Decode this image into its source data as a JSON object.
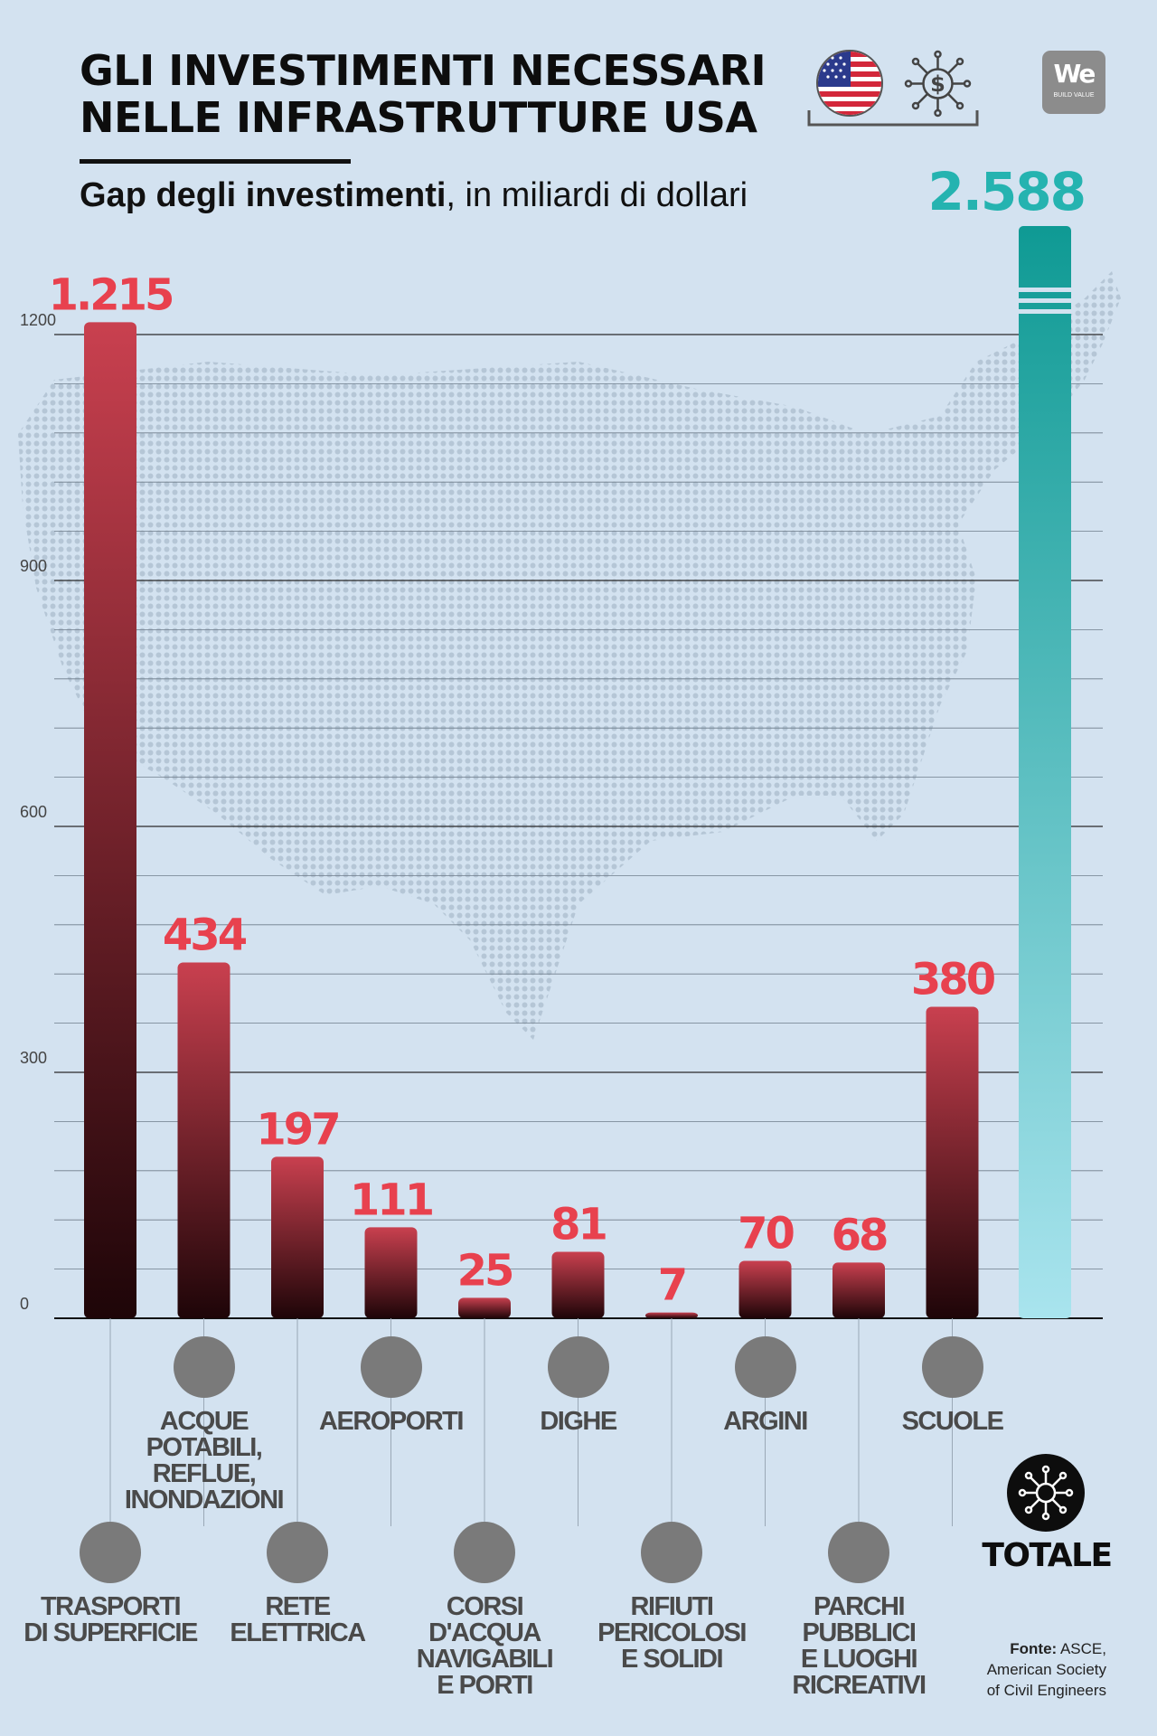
{
  "title": {
    "line1": "GLI INVESTIMENTI NECESSARI",
    "line2": "NELLE INFRASTRUTTURE USA"
  },
  "subtitle": {
    "bold": "Gap degli investimenti",
    "rest": ", in miliardi di dollari"
  },
  "logo": {
    "text": "We",
    "sub": "BUILD VALUE"
  },
  "colors": {
    "bar_top": "#c9404f",
    "bar_bottom": "#1e0508",
    "value_text": "#e8414e",
    "total_top": "#0f9a94",
    "total_bottom": "#a9e4ee",
    "total_value_text": "#25b3b0",
    "label_text": "#4a4a4a",
    "icon_bg": "#7a7a7a"
  },
  "chart_data": {
    "type": "bar",
    "title": "Gap degli investimenti, in miliardi di dollari",
    "ylim": [
      0,
      1200
    ],
    "yticks": [
      "0",
      "300",
      "600",
      "900",
      "1200"
    ],
    "grid": true,
    "categories": [
      "TRASPORTI DI SUPERFICIE",
      "ACQUE POTABILI, REFLUE, INONDAZIONI",
      "RETE ELETTRICA",
      "AEROPORTI",
      "CORSI D'ACQUA NAVIGABILI E PORTI",
      "DIGHE",
      "RIFIUTI PERICOLOSI E SOLIDI",
      "ARGINI",
      "PARCHI PUBBLICI E LUOGHI RICREATIVI",
      "SCUOLE"
    ],
    "values": [
      1215,
      434,
      197,
      111,
      25,
      81,
      7,
      70,
      68,
      380
    ],
    "value_labels": [
      "1.215",
      "434",
      "197",
      "111",
      "25",
      "81",
      "7",
      "70",
      "68",
      "380"
    ],
    "total": {
      "label": "TOTALE",
      "value": 2588,
      "value_label": "2.588",
      "broken_axis": true
    }
  },
  "labels": [
    {
      "text": "TRASPORTI\nDI SUPERFICIE",
      "icon": "train-icon"
    },
    {
      "text": "ACQUE\nPOTABILI,\nREFLUE,\nINONDAZIONI",
      "icon": "water-tap-icon"
    },
    {
      "text": "RETE\nELETTRICA",
      "icon": "lightbulb-icon"
    },
    {
      "text": "AEROPORTI",
      "icon": "airplane-icon"
    },
    {
      "text": "CORSI\nD'ACQUA\nNAVIGABILI\nE PORTI",
      "icon": "ship-icon"
    },
    {
      "text": "DIGHE",
      "icon": "dam-icon"
    },
    {
      "text": "RIFIUTI\nPERICOLOSI\nE SOLIDI",
      "icon": "hazard-barrel-icon"
    },
    {
      "text": "ARGINI",
      "icon": "brick-wall-icon"
    },
    {
      "text": "PARCHI\nPUBBLICI\nE LUOGHI\nRICREATIVI",
      "icon": "tree-icon"
    },
    {
      "text": "SCUOLE",
      "icon": "school-icon"
    }
  ],
  "totale": {
    "label": "TOTALE",
    "icon": "network-icon"
  },
  "header_icons": {
    "flag": "usa-flag-icon",
    "investment": "dollar-network-icon"
  },
  "source": {
    "bold": "Fonte:",
    "text": " ASCE,\nAmerican Society\nof Civil Engineers"
  }
}
